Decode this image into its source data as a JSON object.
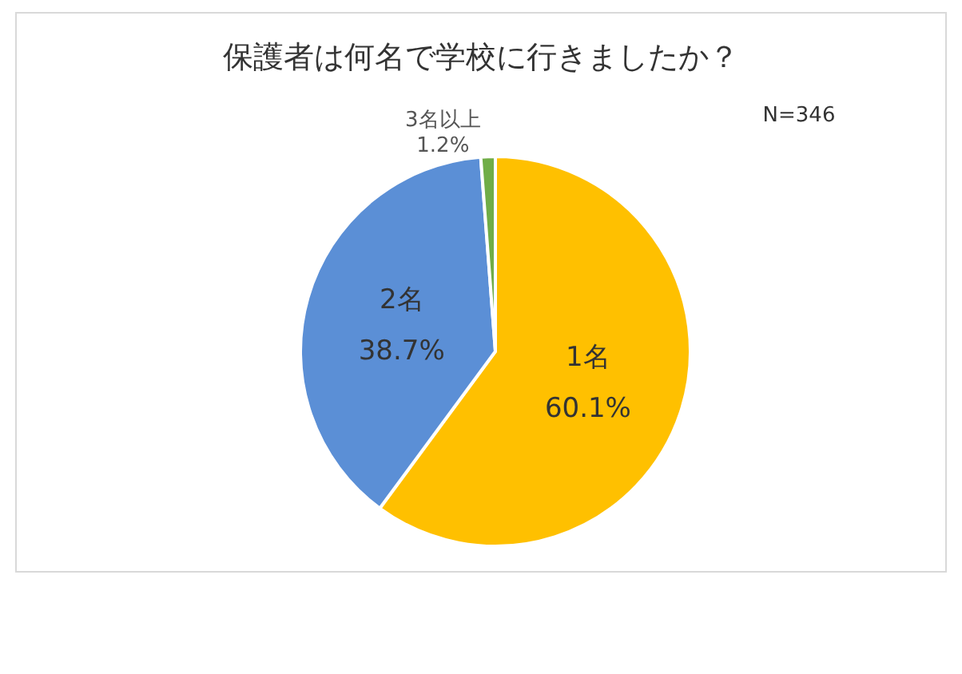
{
  "chart_data": {
    "type": "pie",
    "title": "保護者は何名で学校に行きましたか？",
    "categories": [
      "1名",
      "2名",
      "3名以上"
    ],
    "values": [
      60.1,
      38.7,
      1.2
    ],
    "colors": [
      "#ffc000",
      "#5b8fd6",
      "#70ad47"
    ],
    "value_labels": [
      "60.1%",
      "38.7%",
      "1.2%"
    ],
    "annotations": [
      "N=346"
    ]
  }
}
